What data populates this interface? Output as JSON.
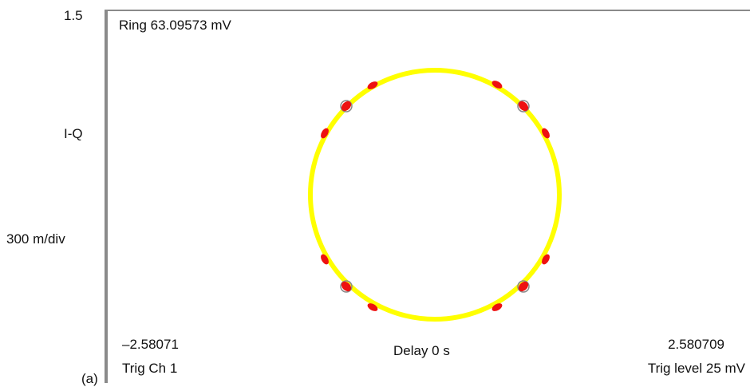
{
  "left_labels": {
    "top": "1.5",
    "mode": "I-Q",
    "scale": "300 m/div"
  },
  "figure_label": "(a)",
  "screen": {
    "ring": "Ring 63.09573 mV",
    "x_min": "–2.58071",
    "trigger_channel": "Trig Ch 1",
    "delay": "Delay 0 s",
    "x_max": "2.580709",
    "trigger_level": "Trig level 25 mV"
  }
}
